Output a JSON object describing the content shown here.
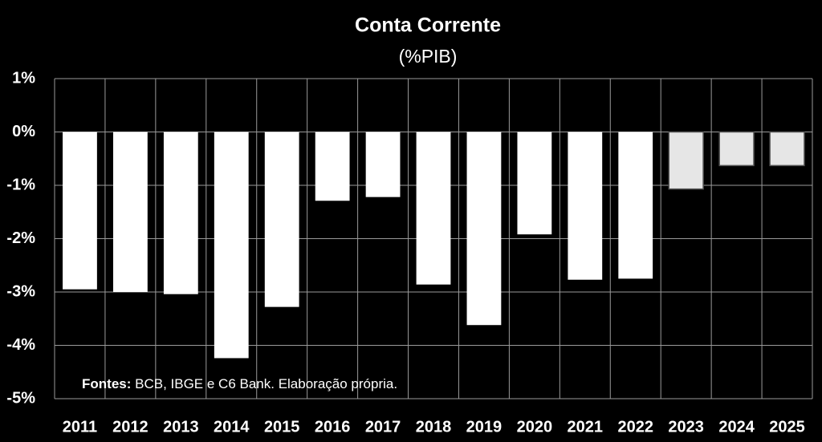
{
  "chart_data": {
    "type": "bar",
    "title": "Conta Corrente",
    "subtitle": "(%PIB)",
    "categories": [
      "2011",
      "2012",
      "2013",
      "2014",
      "2015",
      "2016",
      "2017",
      "2018",
      "2019",
      "2020",
      "2021",
      "2022",
      "2023",
      "2024",
      "2025"
    ],
    "values": [
      -2.95,
      -3.0,
      -3.04,
      -4.24,
      -3.28,
      -1.29,
      -1.22,
      -2.86,
      -3.62,
      -1.92,
      -2.77,
      -2.75,
      -1.07,
      -0.63,
      -0.63
    ],
    "colors": [
      "#ffffff",
      "#ffffff",
      "#ffffff",
      "#ffffff",
      "#ffffff",
      "#ffffff",
      "#ffffff",
      "#ffffff",
      "#ffffff",
      "#ffffff",
      "#ffffff",
      "#ffffff",
      "#e6e6e6",
      "#e6e6e6",
      "#e6e6e6"
    ],
    "ylim": [
      -5,
      1
    ],
    "yticks": [
      {
        "value": 1,
        "label": "1%"
      },
      {
        "value": 0,
        "label": "0%"
      },
      {
        "value": -1,
        "label": "-1%"
      },
      {
        "value": -2,
        "label": "-2%"
      },
      {
        "value": -3,
        "label": "-3%"
      },
      {
        "value": -4,
        "label": "-4%"
      },
      {
        "value": -5,
        "label": "-5%"
      }
    ],
    "grid": true,
    "source_label": "Fontes:",
    "source_text": " BCB, IBGE e C6 Bank. Elaboração própria."
  }
}
